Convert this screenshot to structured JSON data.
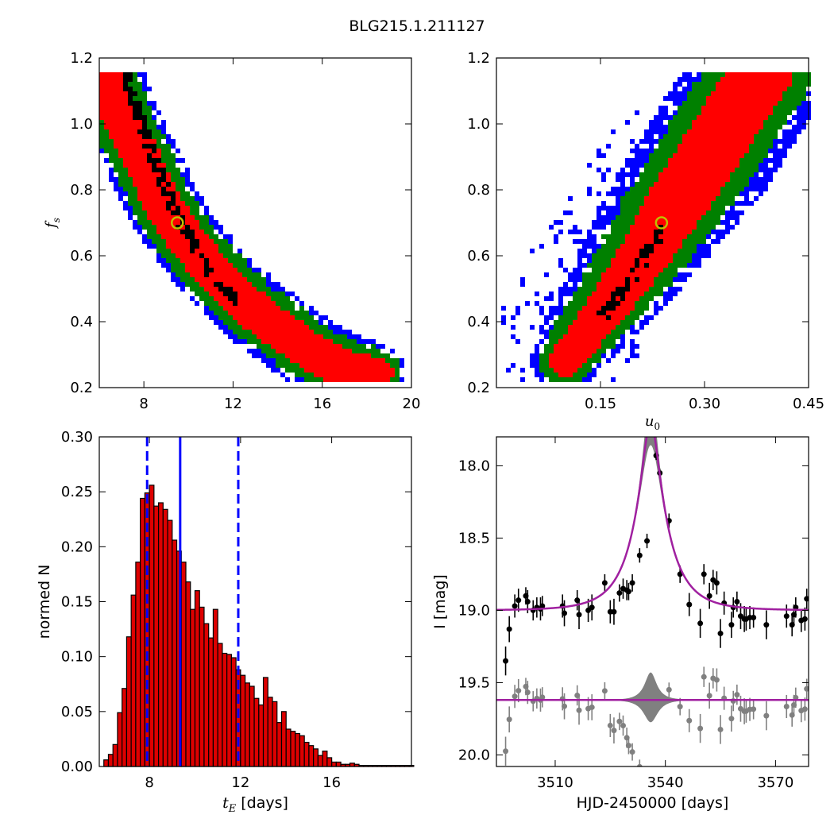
{
  "title": "BLG215.1.211127",
  "colors": {
    "blue": "#0000ff",
    "green": "#008000",
    "red": "#ff0000",
    "black": "#000000",
    "marker": "#bfbf00",
    "hist_fill": "#dd0000",
    "model": "#a020a0",
    "band": "#808080"
  },
  "chart_data": [
    {
      "panel": "top-left",
      "type": "heatmap",
      "xlabel": "",
      "ylabel": "f_s",
      "xlim": [
        6.0,
        20.0
      ],
      "ylim": [
        0.2,
        1.2
      ],
      "xticks": [
        "8",
        "12",
        "16",
        "20"
      ],
      "yticks": [
        "0.2",
        "0.4",
        "0.6",
        "0.8",
        "1.0",
        "1.2"
      ],
      "confidence_levels": [
        "blue",
        "green",
        "red",
        "black"
      ],
      "best_fit": {
        "x": 9.5,
        "y": 0.7
      },
      "ridge": [
        [
          6.3,
          1.15
        ],
        [
          7.0,
          1.02
        ],
        [
          8.0,
          0.88
        ],
        [
          9.0,
          0.74
        ],
        [
          10.0,
          0.64
        ],
        [
          11.0,
          0.56
        ],
        [
          12.0,
          0.49
        ],
        [
          13.0,
          0.43
        ],
        [
          14.0,
          0.38
        ],
        [
          15.0,
          0.33
        ],
        [
          16.0,
          0.29
        ],
        [
          17.0,
          0.26
        ],
        [
          18.5,
          0.24
        ]
      ],
      "core": [
        [
          7.2,
          1.15
        ],
        [
          8.3,
          0.92
        ],
        [
          9.5,
          0.72
        ],
        [
          11.0,
          0.55
        ],
        [
          12.0,
          0.47
        ]
      ]
    },
    {
      "panel": "top-right",
      "type": "heatmap",
      "xlabel": "u_0",
      "ylabel": "",
      "xlim": [
        0.0,
        0.45
      ],
      "ylim": [
        0.2,
        1.2
      ],
      "xticks": [
        "0.15",
        "0.30",
        "0.45"
      ],
      "yticks": [
        "0.2",
        "0.4",
        "0.6",
        "0.8",
        "1.0",
        "1.2"
      ],
      "confidence_levels": [
        "blue",
        "green",
        "red",
        "black"
      ],
      "best_fit": {
        "x": 0.238,
        "y": 0.7
      },
      "ridge": [
        [
          0.1,
          0.28
        ],
        [
          0.13,
          0.36
        ],
        [
          0.16,
          0.44
        ],
        [
          0.19,
          0.53
        ],
        [
          0.22,
          0.62
        ],
        [
          0.25,
          0.72
        ],
        [
          0.28,
          0.82
        ],
        [
          0.31,
          0.92
        ],
        [
          0.34,
          1.02
        ],
        [
          0.37,
          1.12
        ],
        [
          0.385,
          1.16
        ]
      ],
      "core": [
        [
          0.155,
          0.42
        ],
        [
          0.19,
          0.52
        ],
        [
          0.24,
          0.68
        ]
      ]
    },
    {
      "panel": "bottom-left",
      "type": "bar",
      "xlabel": "t_E",
      "xlabel_unit": "[days]",
      "ylabel": "normed N",
      "xlim": [
        5.8,
        19.5
      ],
      "ylim": [
        0.0,
        0.3
      ],
      "xticks": [
        "8",
        "12",
        "16"
      ],
      "yticks": [
        "0.00",
        "0.05",
        "0.10",
        "0.15",
        "0.20",
        "0.25",
        "0.30"
      ],
      "bin_start": 6.0,
      "bin_width": 0.2,
      "values": [
        0.006,
        0.011,
        0.02,
        0.049,
        0.071,
        0.118,
        0.156,
        0.186,
        0.244,
        0.249,
        0.256,
        0.237,
        0.24,
        0.234,
        0.224,
        0.206,
        0.196,
        0.186,
        0.168,
        0.143,
        0.16,
        0.145,
        0.13,
        0.117,
        0.143,
        0.112,
        0.103,
        0.102,
        0.099,
        0.088,
        0.083,
        0.076,
        0.073,
        0.062,
        0.056,
        0.081,
        0.063,
        0.059,
        0.04,
        0.05,
        0.034,
        0.032,
        0.03,
        0.028,
        0.022,
        0.019,
        0.016,
        0.01,
        0.014,
        0.008,
        0.004,
        0.004,
        0.002,
        0.002,
        0.003,
        0.002,
        0.001,
        0.001,
        0.001,
        0.001,
        0.001,
        0.001,
        0.001,
        0.001,
        0.001,
        0.001,
        0.001,
        0.001
      ],
      "median": 9.35,
      "interval": [
        7.9,
        11.9
      ]
    },
    {
      "panel": "bottom-right",
      "type": "scatter",
      "xlabel": "HJD-2450000 [days]",
      "ylabel": "I [mag]",
      "xlim": [
        3494.0,
        3579.0
      ],
      "ylim": [
        20.08,
        17.8
      ],
      "y_inverted": true,
      "xticks": [
        "3510",
        "3540",
        "3570"
      ],
      "yticks": [
        "18.0",
        "18.5",
        "19.0",
        "19.5",
        "20.0"
      ],
      "model": {
        "baseline": 19.0,
        "t0": 3536.0,
        "u0": 0.238,
        "tE": 9.5,
        "fs": 0.7
      },
      "residual_offset": 19.62,
      "points": [
        {
          "x": 3496.5,
          "y": 19.35,
          "e": 0.1
        },
        {
          "x": 3497.5,
          "y": 19.13,
          "e": 0.09
        },
        {
          "x": 3499.0,
          "y": 18.97,
          "e": 0.08
        },
        {
          "x": 3500.0,
          "y": 18.93,
          "e": 0.08
        },
        {
          "x": 3502.0,
          "y": 18.9,
          "e": 0.06
        },
        {
          "x": 3502.5,
          "y": 18.94,
          "e": 0.08
        },
        {
          "x": 3504.0,
          "y": 19.0,
          "e": 0.07
        },
        {
          "x": 3505.0,
          "y": 18.98,
          "e": 0.07
        },
        {
          "x": 3506.0,
          "y": 18.99,
          "e": 0.08
        },
        {
          "x": 3506.5,
          "y": 18.97,
          "e": 0.07
        },
        {
          "x": 3512.0,
          "y": 18.97,
          "e": 0.08
        },
        {
          "x": 3512.5,
          "y": 19.02,
          "e": 0.09
        },
        {
          "x": 3516.0,
          "y": 18.93,
          "e": 0.07
        },
        {
          "x": 3516.5,
          "y": 19.03,
          "e": 0.1
        },
        {
          "x": 3519.0,
          "y": 19.0,
          "e": 0.08
        },
        {
          "x": 3520.0,
          "y": 18.98,
          "e": 0.09
        },
        {
          "x": 3523.5,
          "y": 18.81,
          "e": 0.06
        },
        {
          "x": 3525.0,
          "y": 19.01,
          "e": 0.08
        },
        {
          "x": 3526.0,
          "y": 19.01,
          "e": 0.09
        },
        {
          "x": 3527.5,
          "y": 18.88,
          "e": 0.06
        },
        {
          "x": 3528.5,
          "y": 18.85,
          "e": 0.07
        },
        {
          "x": 3529.5,
          "y": 18.86,
          "e": 0.07
        },
        {
          "x": 3530.0,
          "y": 18.87,
          "e": 0.06
        },
        {
          "x": 3531.0,
          "y": 18.81,
          "e": 0.06
        },
        {
          "x": 3533.0,
          "y": 18.62,
          "e": 0.05
        },
        {
          "x": 3535.0,
          "y": 18.52,
          "e": 0.05
        },
        {
          "x": 3537.5,
          "y": 17.93,
          "e": 0.03
        },
        {
          "x": 3538.5,
          "y": 18.05,
          "e": 0.03
        },
        {
          "x": 3541.0,
          "y": 18.38,
          "e": 0.05
        },
        {
          "x": 3544.0,
          "y": 18.75,
          "e": 0.06
        },
        {
          "x": 3546.5,
          "y": 18.96,
          "e": 0.08
        },
        {
          "x": 3549.5,
          "y": 19.09,
          "e": 0.1
        },
        {
          "x": 3550.5,
          "y": 18.75,
          "e": 0.07
        },
        {
          "x": 3552.0,
          "y": 18.9,
          "e": 0.09
        },
        {
          "x": 3553.0,
          "y": 18.79,
          "e": 0.07
        },
        {
          "x": 3554.0,
          "y": 18.81,
          "e": 0.08
        },
        {
          "x": 3555.0,
          "y": 19.16,
          "e": 0.1
        },
        {
          "x": 3556.0,
          "y": 18.95,
          "e": 0.08
        },
        {
          "x": 3558.0,
          "y": 19.1,
          "e": 0.09
        },
        {
          "x": 3558.5,
          "y": 18.98,
          "e": 0.07
        },
        {
          "x": 3559.5,
          "y": 18.94,
          "e": 0.07
        },
        {
          "x": 3560.5,
          "y": 19.04,
          "e": 0.09
        },
        {
          "x": 3561.5,
          "y": 19.06,
          "e": 0.09
        },
        {
          "x": 3562.0,
          "y": 19.06,
          "e": 0.08
        },
        {
          "x": 3563.0,
          "y": 19.05,
          "e": 0.08
        },
        {
          "x": 3564.0,
          "y": 19.05,
          "e": 0.07
        },
        {
          "x": 3567.5,
          "y": 19.1,
          "e": 0.1
        },
        {
          "x": 3573.0,
          "y": 19.04,
          "e": 0.08
        },
        {
          "x": 3574.5,
          "y": 19.1,
          "e": 0.08
        },
        {
          "x": 3575.0,
          "y": 19.03,
          "e": 0.07
        },
        {
          "x": 3575.5,
          "y": 18.98,
          "e": 0.07
        },
        {
          "x": 3577.0,
          "y": 19.07,
          "e": 0.08
        },
        {
          "x": 3578.0,
          "y": 19.06,
          "e": 0.08
        },
        {
          "x": 3578.5,
          "y": 18.92,
          "e": 0.07
        }
      ]
    }
  ]
}
